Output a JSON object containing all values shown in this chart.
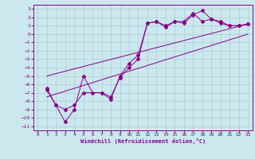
{
  "background_color": "#cce8ef",
  "grid_color": "#aaccd4",
  "line_color": "#880088",
  "marker_color": "#880088",
  "xlabel": "Windchill (Refroidissement éolien,°C)",
  "xlim": [
    -0.5,
    23.5
  ],
  "ylim": [
    -11.5,
    3.5
  ],
  "xticks": [
    0,
    1,
    2,
    3,
    4,
    5,
    6,
    7,
    8,
    9,
    10,
    11,
    12,
    13,
    14,
    15,
    16,
    17,
    18,
    19,
    20,
    21,
    22,
    23
  ],
  "yticks": [
    3,
    2,
    1,
    0,
    -1,
    -2,
    -3,
    -4,
    -5,
    -6,
    -7,
    -8,
    -9,
    -10,
    -11
  ],
  "series1_x": [
    1,
    2,
    3,
    4,
    5,
    6,
    7,
    8,
    9,
    10,
    11,
    12,
    13,
    14,
    15,
    16,
    17,
    18,
    19,
    20,
    21,
    22,
    23
  ],
  "series1_y": [
    -6.5,
    -8.5,
    -10.5,
    -9.0,
    -5.0,
    -7.0,
    -7.0,
    -7.8,
    -5.0,
    -3.5,
    -2.5,
    1.3,
    1.5,
    1.0,
    1.5,
    1.5,
    2.5,
    1.5,
    1.8,
    1.3,
    1.0,
    1.0,
    1.2
  ],
  "series2_x": [
    1,
    2,
    3,
    4,
    5,
    7,
    8,
    9,
    10,
    11,
    12,
    13,
    14,
    15,
    16,
    17,
    18,
    19,
    20,
    21,
    22,
    23
  ],
  "series2_y": [
    -6.7,
    -8.5,
    -9.0,
    -8.5,
    -7.0,
    -7.0,
    -7.5,
    -5.2,
    -4.0,
    -3.0,
    1.3,
    1.5,
    0.8,
    1.5,
    1.3,
    2.3,
    2.8,
    1.8,
    1.5,
    1.0,
    1.0,
    1.2
  ],
  "line1_x": [
    1,
    23
  ],
  "line1_y": [
    -5.0,
    1.2
  ],
  "line2_x": [
    1,
    23
  ],
  "line2_y": [
    -7.5,
    0.0
  ]
}
